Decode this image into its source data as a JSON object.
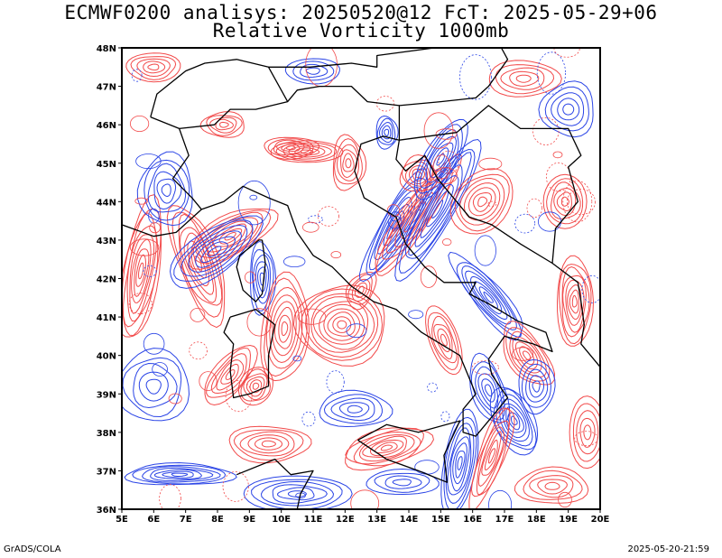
{
  "header": {
    "title_line1": "ECMWF0200 analisys: 20250520@12 FcT: 2025-05-29+06",
    "title_line2": "Relative Vorticity 1000mb"
  },
  "map": {
    "lon_range": [
      5,
      20
    ],
    "lat_range": [
      36,
      48
    ],
    "x_ticks": [
      "5E",
      "6E",
      "7E",
      "8E",
      "9E",
      "10E",
      "11E",
      "12E",
      "13E",
      "14E",
      "15E",
      "16E",
      "17E",
      "18E",
      "19E",
      "20E"
    ],
    "y_ticks": [
      "36N",
      "37N",
      "38N",
      "39N",
      "40N",
      "41N",
      "42N",
      "43N",
      "44N",
      "45N",
      "46N",
      "47N",
      "48N"
    ],
    "colors": {
      "positive_contour": "#f24a4a",
      "negative_contour": "#2a44e6",
      "coastline": "#000000",
      "frame": "#000000"
    }
  },
  "footer": {
    "left": "GrADS/COLA",
    "right": "2025-05-20-21:59"
  }
}
